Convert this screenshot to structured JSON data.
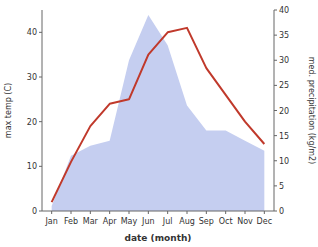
{
  "chart_data": {
    "type": "line",
    "categories": [
      "Jan",
      "Feb",
      "Mar",
      "Apr",
      "May",
      "Jun",
      "Jul",
      "Aug",
      "Sep",
      "Oct",
      "Nov",
      "Dec"
    ],
    "xlabel": "date (month)",
    "ylabel": "max temp (C)",
    "y2label": "med. precipitation (kg/m2)",
    "series": [
      {
        "type": "area",
        "axis": "y2",
        "color": "#c5cef0",
        "values": [
          1,
          11,
          13,
          14,
          30,
          39,
          33,
          21,
          16,
          16,
          14,
          12
        ]
      },
      {
        "type": "line",
        "color": "#c0392b",
        "values": [
          2,
          11,
          19,
          24,
          25,
          35,
          40,
          41,
          32,
          26,
          20,
          15
        ]
      }
    ],
    "ylim": [
      0,
      45
    ],
    "yticks": [
      0,
      10,
      20,
      30,
      40
    ],
    "y2lim": [
      0,
      40
    ],
    "y2ticks": [
      0,
      5,
      10,
      15,
      20,
      25,
      30,
      35,
      40
    ],
    "grid": false
  }
}
